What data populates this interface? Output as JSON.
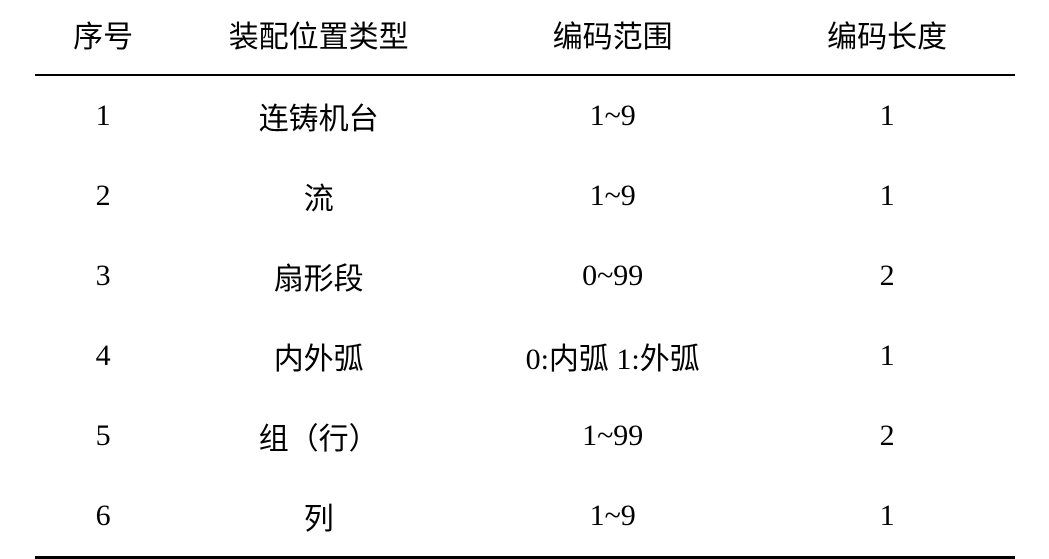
{
  "table": {
    "columns": [
      {
        "label": "序号",
        "width_pct": 14,
        "align": "center"
      },
      {
        "label": "装配位置类型",
        "width_pct": 30,
        "align": "center"
      },
      {
        "label": "编码范围",
        "width_pct": 30,
        "align": "center"
      },
      {
        "label": "编码长度",
        "width_pct": 26,
        "align": "center"
      }
    ],
    "rows": [
      {
        "seq": "1",
        "type": "连铸机台",
        "range": "1~9",
        "length": "1"
      },
      {
        "seq": "2",
        "type": "流",
        "range": "1~9",
        "length": "1"
      },
      {
        "seq": "3",
        "type": "扇形段",
        "range": "0~99",
        "length": "2"
      },
      {
        "seq": "4",
        "type": "内外弧",
        "range": "0:内弧 1:外弧",
        "length": "1"
      },
      {
        "seq": "5",
        "type": "组（行）",
        "range": "1~99",
        "length": "2"
      },
      {
        "seq": "6",
        "type": "列",
        "range": "1~9",
        "length": "1"
      }
    ],
    "style": {
      "border_top_width": 3,
      "border_bottom_width": 3,
      "header_border_bottom_width": 2,
      "border_color": "#000000",
      "background_color": "#ffffff",
      "font_family": "SimSun",
      "header_fontsize": 30,
      "cell_fontsize": 30,
      "text_color": "#000000",
      "cell_padding_v": 18,
      "cell_padding_h": 10
    }
  }
}
